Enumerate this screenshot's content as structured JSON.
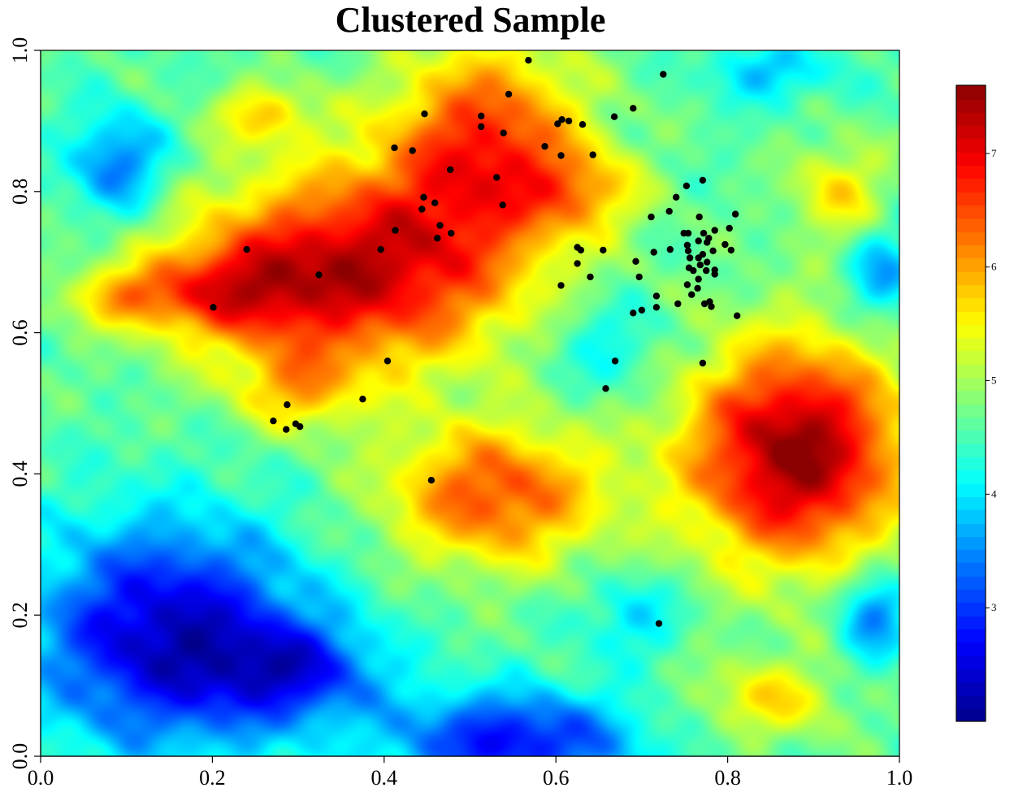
{
  "chart_data": {
    "type": "heatmap",
    "title": "Clustered Sample",
    "xlabel": "",
    "ylabel": "",
    "xlim": [
      0.0,
      1.0
    ],
    "ylim": [
      0.0,
      1.0
    ],
    "x_ticks": [
      "0.0",
      "0.2",
      "0.4",
      "0.6",
      "0.8",
      "1.0"
    ],
    "y_ticks": [
      "0.0",
      "0.2",
      "0.4",
      "0.6",
      "0.8",
      "1.0"
    ],
    "x_tick_values": [
      0.0,
      0.2,
      0.4,
      0.6,
      0.8,
      1.0
    ],
    "y_tick_values": [
      0.0,
      0.2,
      0.4,
      0.6,
      0.8,
      1.0
    ],
    "colorbar": {
      "range": [
        2.0,
        7.6
      ],
      "ticks": [
        "3",
        "4",
        "5",
        "6",
        "7"
      ],
      "tick_values": [
        3,
        4,
        5,
        6,
        7
      ],
      "palette": [
        "#00008b",
        "#0000ff",
        "#0078ff",
        "#00ffff",
        "#7fff7f",
        "#ffff00",
        "#ff7f00",
        "#ff0000",
        "#8b0000"
      ]
    },
    "surface": {
      "base": 4.6,
      "noise_amplitude": 0.35,
      "blobs": [
        {
          "x": 0.37,
          "y": 0.69,
          "amp": 2.6,
          "sx": 0.13,
          "sy": 0.1
        },
        {
          "x": 0.22,
          "y": 0.66,
          "amp": 1.3,
          "sx": 0.07,
          "sy": 0.05
        },
        {
          "x": 0.1,
          "y": 0.65,
          "amp": 1.1,
          "sx": 0.05,
          "sy": 0.03
        },
        {
          "x": 0.52,
          "y": 0.87,
          "amp": 2.0,
          "sx": 0.08,
          "sy": 0.1
        },
        {
          "x": 0.3,
          "y": 0.52,
          "amp": 1.0,
          "sx": 0.05,
          "sy": 0.04
        },
        {
          "x": 0.88,
          "y": 0.43,
          "amp": 3.0,
          "sx": 0.09,
          "sy": 0.11
        },
        {
          "x": 0.53,
          "y": 0.37,
          "amp": 1.9,
          "sx": 0.09,
          "sy": 0.07
        },
        {
          "x": 0.63,
          "y": 0.8,
          "amp": 1.0,
          "sx": 0.05,
          "sy": 0.04
        },
        {
          "x": 0.93,
          "y": 0.8,
          "amp": 1.0,
          "sx": 0.04,
          "sy": 0.05
        },
        {
          "x": 0.26,
          "y": 0.91,
          "amp": 1.0,
          "sx": 0.04,
          "sy": 0.03
        },
        {
          "x": 0.85,
          "y": 0.08,
          "amp": 1.0,
          "sx": 0.06,
          "sy": 0.04
        },
        {
          "x": 0.15,
          "y": 0.17,
          "amp": -2.3,
          "sx": 0.11,
          "sy": 0.11
        },
        {
          "x": 0.3,
          "y": 0.12,
          "amp": -1.4,
          "sx": 0.07,
          "sy": 0.05
        },
        {
          "x": 0.55,
          "y": 0.02,
          "amp": -1.9,
          "sx": 0.1,
          "sy": 0.05
        },
        {
          "x": 0.09,
          "y": 0.84,
          "amp": -1.3,
          "sx": 0.04,
          "sy": 0.05
        },
        {
          "x": 0.69,
          "y": 0.2,
          "amp": -0.7,
          "sx": 0.04,
          "sy": 0.04
        },
        {
          "x": 0.97,
          "y": 0.2,
          "amp": -1.2,
          "sx": 0.03,
          "sy": 0.05
        },
        {
          "x": 0.98,
          "y": 0.68,
          "amp": -1.0,
          "sx": 0.03,
          "sy": 0.05
        },
        {
          "x": 0.85,
          "y": 0.97,
          "amp": -0.8,
          "sx": 0.05,
          "sy": 0.03
        },
        {
          "x": 0.66,
          "y": 0.58,
          "amp": -0.6,
          "sx": 0.05,
          "sy": 0.05
        }
      ]
    },
    "points": [
      [
        0.568,
        0.986
      ],
      [
        0.725,
        0.966
      ],
      [
        0.545,
        0.938
      ],
      [
        0.69,
        0.918
      ],
      [
        0.447,
        0.91
      ],
      [
        0.513,
        0.907
      ],
      [
        0.668,
        0.906
      ],
      [
        0.607,
        0.902
      ],
      [
        0.615,
        0.9
      ],
      [
        0.602,
        0.896
      ],
      [
        0.631,
        0.895
      ],
      [
        0.513,
        0.892
      ],
      [
        0.539,
        0.883
      ],
      [
        0.587,
        0.864
      ],
      [
        0.412,
        0.862
      ],
      [
        0.433,
        0.858
      ],
      [
        0.606,
        0.851
      ],
      [
        0.643,
        0.852
      ],
      [
        0.477,
        0.831
      ],
      [
        0.531,
        0.82
      ],
      [
        0.771,
        0.816
      ],
      [
        0.752,
        0.808
      ],
      [
        0.446,
        0.792
      ],
      [
        0.74,
        0.792
      ],
      [
        0.459,
        0.784
      ],
      [
        0.444,
        0.775
      ],
      [
        0.538,
        0.781
      ],
      [
        0.732,
        0.772
      ],
      [
        0.809,
        0.768
      ],
      [
        0.711,
        0.764
      ],
      [
        0.767,
        0.764
      ],
      [
        0.465,
        0.752
      ],
      [
        0.754,
        0.741
      ],
      [
        0.749,
        0.741
      ],
      [
        0.772,
        0.741
      ],
      [
        0.785,
        0.745
      ],
      [
        0.802,
        0.748
      ],
      [
        0.413,
        0.745
      ],
      [
        0.478,
        0.741
      ],
      [
        0.462,
        0.734
      ],
      [
        0.778,
        0.734
      ],
      [
        0.766,
        0.73
      ],
      [
        0.753,
        0.724
      ],
      [
        0.797,
        0.725
      ],
      [
        0.776,
        0.728
      ],
      [
        0.625,
        0.721
      ],
      [
        0.24,
        0.718
      ],
      [
        0.396,
        0.718
      ],
      [
        0.629,
        0.717
      ],
      [
        0.655,
        0.717
      ],
      [
        0.733,
        0.718
      ],
      [
        0.754,
        0.716
      ],
      [
        0.804,
        0.717
      ],
      [
        0.714,
        0.714
      ],
      [
        0.783,
        0.716
      ],
      [
        0.771,
        0.711
      ],
      [
        0.766,
        0.706
      ],
      [
        0.756,
        0.706
      ],
      [
        0.776,
        0.7
      ],
      [
        0.693,
        0.701
      ],
      [
        0.625,
        0.698
      ],
      [
        0.768,
        0.696
      ],
      [
        0.755,
        0.692
      ],
      [
        0.76,
        0.688
      ],
      [
        0.775,
        0.688
      ],
      [
        0.785,
        0.689
      ],
      [
        0.785,
        0.683
      ],
      [
        0.697,
        0.679
      ],
      [
        0.64,
        0.679
      ],
      [
        0.324,
        0.682
      ],
      [
        0.766,
        0.676
      ],
      [
        0.753,
        0.668
      ],
      [
        0.606,
        0.667
      ],
      [
        0.765,
        0.663
      ],
      [
        0.758,
        0.654
      ],
      [
        0.717,
        0.652
      ],
      [
        0.779,
        0.644
      ],
      [
        0.773,
        0.641
      ],
      [
        0.742,
        0.641
      ],
      [
        0.781,
        0.637
      ],
      [
        0.201,
        0.636
      ],
      [
        0.717,
        0.636
      ],
      [
        0.7,
        0.632
      ],
      [
        0.69,
        0.628
      ],
      [
        0.811,
        0.624
      ],
      [
        0.404,
        0.56
      ],
      [
        0.669,
        0.56
      ],
      [
        0.771,
        0.557
      ],
      [
        0.658,
        0.521
      ],
      [
        0.375,
        0.506
      ],
      [
        0.287,
        0.498
      ],
      [
        0.271,
        0.475
      ],
      [
        0.297,
        0.471
      ],
      [
        0.302,
        0.467
      ],
      [
        0.286,
        0.463
      ],
      [
        0.455,
        0.391
      ],
      [
        0.72,
        0.188
      ]
    ]
  }
}
